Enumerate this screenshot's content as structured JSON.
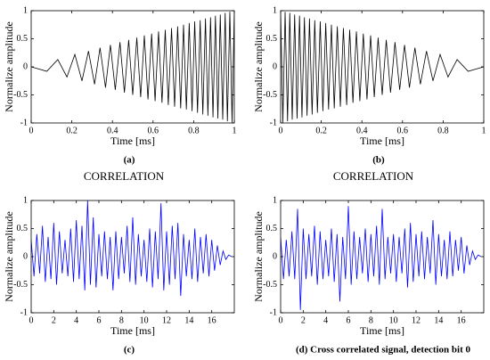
{
  "chart_data": [
    {
      "type": "line",
      "caption": "(a)",
      "xlabel": "Time [ms]",
      "ylabel": "Normalize amplitude",
      "xlim": [
        0,
        1
      ],
      "xticks": [
        0,
        0.2,
        0.4,
        0.6,
        0.8,
        1
      ],
      "ylim": [
        -1,
        1
      ],
      "yticks": [
        -1,
        -0.5,
        0,
        0.5,
        1
      ],
      "color": "#000000",
      "x": [
        0,
        0.077,
        0.131,
        0.176,
        0.215,
        0.25,
        0.282,
        0.312,
        0.339,
        0.366,
        0.39,
        0.414,
        0.437,
        0.459,
        0.48,
        0.5,
        0.52,
        0.539,
        0.557,
        0.575,
        0.593,
        0.61,
        0.627,
        0.644,
        0.66,
        0.675,
        0.691,
        0.706,
        0.721,
        0.736,
        0.75,
        0.764,
        0.778,
        0.792,
        0.805,
        0.819,
        0.832,
        0.845,
        0.858,
        0.87,
        0.883,
        0.895,
        0.907,
        0.919,
        0.931,
        0.943,
        0.955,
        0.966,
        0.978,
        0.989,
        1
      ],
      "values": [
        0,
        -0.08,
        0.13,
        -0.18,
        0.22,
        -0.25,
        0.28,
        -0.31,
        0.34,
        -0.37,
        0.39,
        -0.41,
        0.44,
        -0.46,
        0.48,
        -0.5,
        0.52,
        -0.54,
        0.56,
        -0.58,
        0.59,
        -0.61,
        0.63,
        -0.64,
        0.66,
        -0.68,
        0.69,
        -0.71,
        0.72,
        -0.74,
        0.75,
        -0.76,
        0.78,
        -0.79,
        0.81,
        -0.82,
        0.83,
        -0.85,
        0.86,
        -0.87,
        0.88,
        -0.9,
        0.91,
        -0.92,
        0.93,
        -0.94,
        0.96,
        -0.97,
        0.98,
        -0.99,
        1
      ]
    },
    {
      "type": "line",
      "caption": "(b)",
      "xlabel": "Time [ms]",
      "ylabel": "Normalize amplitude",
      "xlim": [
        0,
        1
      ],
      "xticks": [
        0,
        0.2,
        0.4,
        0.6,
        0.8,
        1
      ],
      "ylim": [
        -1,
        1
      ],
      "yticks": [
        -1,
        -0.5,
        0,
        0.5,
        1
      ],
      "color": "#000000",
      "x": [
        0,
        0.011,
        0.022,
        0.034,
        0.045,
        0.057,
        0.069,
        0.081,
        0.093,
        0.105,
        0.117,
        0.13,
        0.142,
        0.155,
        0.168,
        0.181,
        0.195,
        0.208,
        0.222,
        0.236,
        0.25,
        0.264,
        0.279,
        0.294,
        0.309,
        0.325,
        0.34,
        0.356,
        0.373,
        0.39,
        0.407,
        0.425,
        0.443,
        0.461,
        0.48,
        0.5,
        0.52,
        0.541,
        0.563,
        0.586,
        0.61,
        0.634,
        0.661,
        0.688,
        0.718,
        0.75,
        0.785,
        0.824,
        0.869,
        0.923,
        1
      ],
      "values": [
        1,
        -0.99,
        0.98,
        -0.97,
        0.96,
        -0.94,
        0.93,
        -0.92,
        0.91,
        -0.9,
        0.88,
        -0.87,
        0.86,
        -0.85,
        0.83,
        -0.82,
        0.81,
        -0.79,
        0.78,
        -0.76,
        0.75,
        -0.74,
        0.72,
        -0.71,
        0.69,
        -0.68,
        0.66,
        -0.64,
        0.63,
        -0.61,
        0.59,
        -0.58,
        0.56,
        -0.54,
        0.52,
        -0.5,
        0.48,
        -0.46,
        0.44,
        -0.41,
        0.39,
        -0.37,
        0.34,
        -0.31,
        0.28,
        -0.25,
        0.22,
        -0.18,
        0.13,
        -0.08,
        0
      ]
    },
    {
      "type": "line",
      "heading": "CORRELATION",
      "caption": "(c)",
      "xlabel": "Time [ms]",
      "ylabel": "Normalize amplitude",
      "xlim": [
        0,
        18
      ],
      "xticks": [
        0,
        2,
        4,
        6,
        8,
        10,
        12,
        14,
        16
      ],
      "ylim": [
        -1,
        1
      ],
      "yticks": [
        -1,
        -0.5,
        0,
        0.5,
        1
      ],
      "color": "#0000ff",
      "x": [
        0,
        0.25,
        0.5,
        0.75,
        1,
        1.25,
        1.5,
        1.75,
        2,
        2.25,
        2.5,
        2.75,
        3,
        3.25,
        3.5,
        3.75,
        4,
        4.25,
        4.5,
        4.75,
        5,
        5.25,
        5.5,
        5.75,
        6,
        6.25,
        6.5,
        6.75,
        7,
        7.25,
        7.5,
        7.75,
        8,
        8.25,
        8.5,
        8.75,
        9,
        9.25,
        9.5,
        9.75,
        10,
        10.25,
        10.5,
        10.75,
        11,
        11.25,
        11.5,
        11.75,
        12,
        12.25,
        12.5,
        12.75,
        13,
        13.25,
        13.5,
        13.75,
        14,
        14.25,
        14.5,
        14.75,
        15,
        15.25,
        15.5,
        15.75,
        16,
        16.25,
        16.5,
        16.75,
        17,
        17.25,
        17.5,
        17.75
      ],
      "values": [
        0.3,
        -0.35,
        0.4,
        -0.3,
        0.55,
        -0.45,
        0.35,
        -0.4,
        0.6,
        -0.5,
        0.45,
        -0.3,
        0.3,
        -0.35,
        0.5,
        -0.45,
        0.65,
        -0.4,
        0.55,
        -0.6,
        1.0,
        -0.5,
        0.7,
        -0.55,
        0.4,
        -0.35,
        0.45,
        -0.4,
        0.35,
        -0.6,
        0.45,
        -0.4,
        0.35,
        -0.3,
        0.55,
        -0.45,
        0.7,
        -0.5,
        0.4,
        -0.35,
        0.3,
        -0.45,
        0.5,
        -0.55,
        0.45,
        -0.4,
        0.95,
        -0.6,
        0.45,
        -0.5,
        0.55,
        -0.4,
        0.6,
        -0.7,
        0.4,
        -0.35,
        0.3,
        -0.4,
        0.5,
        -0.45,
        0.35,
        -0.3,
        0.4,
        -0.35,
        0.3,
        -0.25,
        0.2,
        -0.15,
        0.1,
        -0.05,
        0.03,
        0
      ]
    },
    {
      "type": "line",
      "heading": "CORRELATION",
      "caption": "(d) Cross correlated signal, detection bit 0",
      "xlabel": "Time [ms]",
      "ylabel": "Normalize amplitude",
      "xlim": [
        0,
        18
      ],
      "xticks": [
        0,
        2,
        4,
        6,
        8,
        10,
        12,
        14,
        16
      ],
      "ylim": [
        -1,
        1
      ],
      "yticks": [
        -1,
        -0.5,
        0,
        0.5,
        1
      ],
      "color": "#0000ff",
      "x": [
        0,
        0.25,
        0.5,
        0.75,
        1,
        1.25,
        1.5,
        1.75,
        2,
        2.25,
        2.5,
        2.75,
        3,
        3.25,
        3.5,
        3.75,
        4,
        4.25,
        4.5,
        4.75,
        5,
        5.25,
        5.5,
        5.75,
        6,
        6.25,
        6.5,
        6.75,
        7,
        7.25,
        7.5,
        7.75,
        8,
        8.25,
        8.5,
        8.75,
        9,
        9.25,
        9.5,
        9.75,
        10,
        10.25,
        10.5,
        10.75,
        11,
        11.25,
        11.5,
        11.75,
        12,
        12.25,
        12.5,
        12.75,
        13,
        13.25,
        13.5,
        13.75,
        14,
        14.25,
        14.5,
        14.75,
        15,
        15.25,
        15.5,
        15.75,
        16,
        16.25,
        16.5,
        16.75,
        17,
        17.25,
        17.5,
        17.75
      ],
      "values": [
        0.35,
        -0.4,
        0.3,
        -0.35,
        0.45,
        -0.4,
        0.85,
        -0.95,
        0.5,
        -0.4,
        0.4,
        -0.35,
        0.55,
        -0.5,
        0.45,
        -0.4,
        0.3,
        -0.35,
        0.5,
        -0.45,
        0.4,
        -0.8,
        0.35,
        -0.4,
        0.9,
        -0.5,
        0.45,
        -0.4,
        0.35,
        -0.3,
        0.5,
        -0.45,
        0.4,
        -0.35,
        0.55,
        -0.5,
        0.85,
        -0.4,
        0.35,
        -0.3,
        0.4,
        -0.45,
        0.35,
        -0.3,
        0.5,
        -0.55,
        0.6,
        -0.45,
        0.4,
        -0.35,
        0.45,
        -0.4,
        0.35,
        -0.3,
        0.65,
        -0.5,
        0.4,
        -0.35,
        0.3,
        -0.4,
        0.45,
        -0.35,
        0.3,
        -0.25,
        0.35,
        -0.3,
        0.2,
        -0.15,
        0.1,
        -0.05,
        0.03,
        0
      ]
    }
  ]
}
